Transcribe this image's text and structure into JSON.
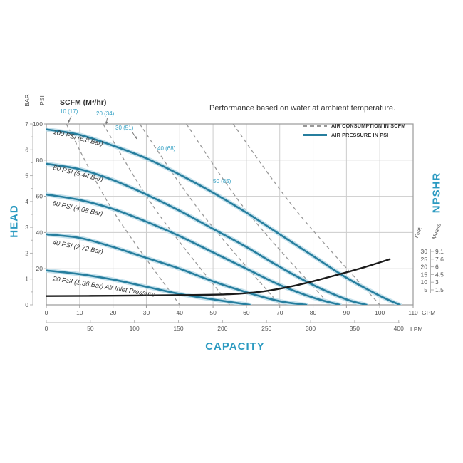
{
  "figure": {
    "title": "Performance based on water at ambient temperature.",
    "scfm_header": "SCFM (M³/hr)",
    "head_axis_label": "HEAD",
    "capacity_axis_label": "CAPACITY",
    "npshr_axis_label": "NPSHR",
    "bar_unit": "BAR",
    "psi_unit": "PSI",
    "gpm_unit": "GPM",
    "lpm_unit": "LPM",
    "feet_unit": "Feet",
    "meters_unit": "Meters"
  },
  "legend": {
    "air_consumption": "AIR CONSUMPTION IN SCFM",
    "air_pressure": "AIR PRESSURE IN PSI"
  },
  "colors": {
    "curve_blue": "#267e9e",
    "curve_halo": "#bfdeea",
    "teal_text": "#2b9ac1",
    "scfm_label_text": "#35a1c4",
    "dashed_gray": "#999999",
    "grid": "#cccccc",
    "plot_border": "#999999",
    "axis_text": "#555555",
    "npshr_black": "#1b1b1b"
  },
  "chart_data": {
    "type": "line",
    "title": "Performance based on water at ambient temperature.",
    "x_axis": {
      "label": "CAPACITY",
      "primary_unit": "GPM",
      "primary_ticks": [
        0,
        10,
        20,
        30,
        40,
        50,
        60,
        70,
        80,
        90,
        100,
        110
      ],
      "secondary_unit": "LPM",
      "secondary_ticks": [
        0,
        50,
        100,
        150,
        200,
        250,
        300,
        350,
        400
      ],
      "gpm_range": [
        0,
        110
      ]
    },
    "y_axis": {
      "label": "HEAD",
      "primary_unit": "PSI",
      "primary_ticks": [
        20,
        40,
        60,
        80,
        100
      ],
      "secondary_unit": "BAR",
      "secondary_ticks": [
        0,
        1,
        2,
        3,
        4,
        5,
        6,
        7
      ],
      "psi_range": [
        0,
        100
      ],
      "bar_range": [
        0,
        7
      ]
    },
    "y2_axis": {
      "label": "NPSHR",
      "feet_unit": "Feet",
      "meters_unit": "Meters",
      "feet_ticks": [
        "30",
        "25",
        "20",
        "15",
        "10",
        "5"
      ],
      "meters_ticks": [
        "9.1",
        "7.6",
        "6",
        "4.5",
        "3",
        "1.5"
      ]
    },
    "grid": "on",
    "legend_position": "top-right",
    "pressure_curves": [
      {
        "label": "100 PSI (6.8 Bar)",
        "points_gpm_psi": [
          [
            0,
            97
          ],
          [
            10,
            94
          ],
          [
            20,
            88
          ],
          [
            30,
            81
          ],
          [
            40,
            72
          ],
          [
            50,
            62
          ],
          [
            60,
            51
          ],
          [
            70,
            39
          ],
          [
            80,
            27
          ],
          [
            90,
            15
          ],
          [
            100,
            5
          ],
          [
            106,
            0
          ]
        ]
      },
      {
        "label": "80 PSI (5.44 Bar)",
        "points_gpm_psi": [
          [
            0,
            78
          ],
          [
            10,
            75
          ],
          [
            20,
            69
          ],
          [
            30,
            61
          ],
          [
            40,
            52
          ],
          [
            50,
            42
          ],
          [
            60,
            32
          ],
          [
            70,
            21
          ],
          [
            80,
            11
          ],
          [
            90,
            3
          ],
          [
            96,
            0
          ]
        ]
      },
      {
        "label": "60 PSI (4.08 Bar)",
        "points_gpm_psi": [
          [
            0,
            61
          ],
          [
            10,
            58
          ],
          [
            20,
            53
          ],
          [
            30,
            46
          ],
          [
            40,
            38
          ],
          [
            50,
            29
          ],
          [
            60,
            20
          ],
          [
            70,
            11
          ],
          [
            80,
            4
          ],
          [
            88,
            0
          ]
        ]
      },
      {
        "label": "40 PSI (2.72 Bar)",
        "points_gpm_psi": [
          [
            0,
            39
          ],
          [
            10,
            37
          ],
          [
            20,
            32
          ],
          [
            30,
            26
          ],
          [
            40,
            20
          ],
          [
            50,
            13
          ],
          [
            60,
            7
          ],
          [
            70,
            2
          ],
          [
            78,
            0
          ]
        ]
      },
      {
        "label": "20 PSI (1.36 Bar) Air Inlet Pressure",
        "points_gpm_psi": [
          [
            0,
            19
          ],
          [
            10,
            17
          ],
          [
            20,
            14
          ],
          [
            30,
            10
          ],
          [
            40,
            6
          ],
          [
            50,
            3
          ],
          [
            61,
            0
          ]
        ]
      }
    ],
    "air_consumption_curves": [
      {
        "label": "10 (17)",
        "points_gpm_psi": [
          [
            6,
            100
          ],
          [
            20,
            52
          ],
          [
            40,
            0
          ]
        ]
      },
      {
        "label": "20 (34)",
        "points_gpm_psi": [
          [
            17,
            100
          ],
          [
            33,
            52
          ],
          [
            55,
            0
          ]
        ]
      },
      {
        "label": "30 (51)",
        "points_gpm_psi": [
          [
            28,
            100
          ],
          [
            46,
            52
          ],
          [
            70,
            0
          ]
        ]
      },
      {
        "label": "40 (68)",
        "points_gpm_psi": [
          [
            42,
            100
          ],
          [
            60,
            52
          ],
          [
            85,
            0
          ]
        ]
      },
      {
        "label": "50 (85)",
        "points_gpm_psi": [
          [
            56,
            100
          ],
          [
            75,
            52
          ],
          [
            100,
            0
          ]
        ]
      }
    ],
    "npshr_curve": {
      "unit": "feet",
      "points_gpm_feet": [
        [
          0,
          1
        ],
        [
          20,
          1.2
        ],
        [
          40,
          1.6
        ],
        [
          55,
          2.2
        ],
        [
          65,
          4
        ],
        [
          75,
          8
        ],
        [
          85,
          13.5
        ],
        [
          95,
          19.5
        ],
        [
          103,
          25
        ]
      ]
    }
  }
}
